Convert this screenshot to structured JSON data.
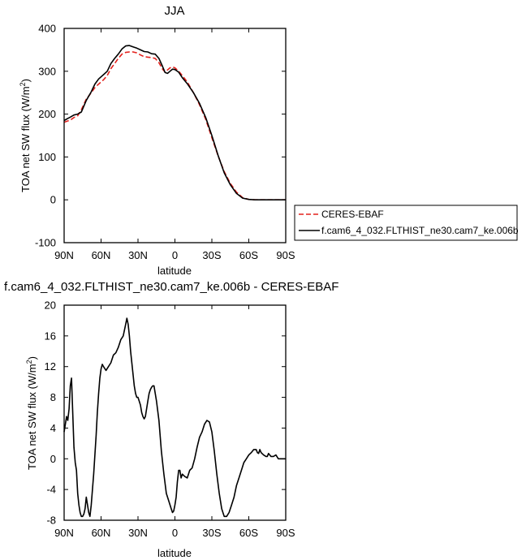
{
  "chart_data": [
    {
      "type": "line",
      "title": "JJA",
      "xlabel": "latitude",
      "ylabel": "TOA net SW flux (W/m",
      "ylabel_sup": "2",
      "ylabel_end": ")",
      "xlim": [
        90,
        -90
      ],
      "ylim": [
        -100,
        400
      ],
      "x_ticks": [
        90,
        60,
        30,
        0,
        -30,
        -60,
        -90
      ],
      "x_tick_labels": [
        "90N",
        "60N",
        "30N",
        "0",
        "30S",
        "60S",
        "90S"
      ],
      "y_ticks": [
        -100,
        0,
        100,
        200,
        300,
        400
      ],
      "y_tick_labels": [
        "-100",
        "0",
        "100",
        "200",
        "300",
        "400"
      ],
      "legend_position": "right",
      "series": [
        {
          "name": "CERES-EBAF",
          "color": "#e4211c",
          "dash": "dashed",
          "x": [
            90,
            87,
            85,
            82,
            79,
            76,
            72,
            68,
            65,
            62,
            58,
            55,
            52,
            49,
            46,
            43,
            40,
            37,
            34,
            31,
            28,
            25,
            22,
            19,
            16,
            13,
            10,
            8,
            6,
            4,
            2,
            0,
            -3,
            -6,
            -10,
            -15,
            -20,
            -25,
            -30,
            -35,
            -40,
            -45,
            -50,
            -55,
            -60,
            -65,
            -70,
            -75,
            -80,
            -85,
            -90
          ],
          "y": [
            181,
            184,
            186,
            192,
            196,
            210,
            235,
            250,
            262,
            270,
            280,
            290,
            306,
            318,
            330,
            340,
            344,
            345,
            345,
            343,
            338,
            334,
            333,
            332,
            330,
            320,
            305,
            298,
            303,
            308,
            310,
            308,
            300,
            290,
            275,
            250,
            222,
            188,
            145,
            103,
            66,
            38,
            18,
            5,
            1,
            0,
            0,
            0,
            0,
            0,
            0
          ]
        },
        {
          "name": "f.cam6_4_032.FLTHIST_ne30.cam7_ke.006b",
          "color": "#000000",
          "dash": "solid",
          "x": [
            90,
            87,
            85,
            82,
            79,
            76,
            72,
            68,
            65,
            62,
            58,
            55,
            52,
            49,
            46,
            43,
            40,
            37,
            34,
            31,
            28,
            25,
            22,
            19,
            16,
            13,
            10,
            8,
            6,
            4,
            2,
            0,
            -3,
            -6,
            -10,
            -15,
            -20,
            -25,
            -30,
            -35,
            -40,
            -45,
            -50,
            -55,
            -60,
            -65,
            -70,
            -75,
            -80,
            -85,
            -90
          ],
          "y": [
            185,
            190,
            193,
            198,
            200,
            205,
            232,
            252,
            270,
            282,
            292,
            300,
            318,
            330,
            340,
            352,
            359,
            360,
            357,
            354,
            350,
            346,
            345,
            341,
            340,
            330,
            311,
            297,
            295,
            300,
            305,
            304,
            298,
            285,
            271,
            250,
            225,
            192,
            150,
            104,
            63,
            35,
            15,
            4,
            1,
            0,
            0,
            0,
            0,
            0,
            0
          ]
        }
      ]
    },
    {
      "type": "line",
      "title": "f.cam6_4_032.FLTHIST_ne30.cam7_ke.006b - CERES-EBAF",
      "xlabel": "latitude",
      "ylabel": "TOA net SW flux (W/m",
      "ylabel_sup": "2",
      "ylabel_end": ")",
      "xlim": [
        90,
        -90
      ],
      "ylim": [
        -8,
        20
      ],
      "x_ticks": [
        90,
        60,
        30,
        0,
        -30,
        -60,
        -90
      ],
      "x_tick_labels": [
        "90N",
        "60N",
        "30N",
        "0",
        "30S",
        "60S",
        "90S"
      ],
      "y_ticks": [
        -8,
        -4,
        0,
        4,
        8,
        12,
        16,
        20
      ],
      "y_tick_labels": [
        "-8",
        "-4",
        "0",
        "4",
        "8",
        "12",
        "16",
        "20"
      ],
      "series": [
        {
          "color": "#000000",
          "dash": "solid",
          "x": [
            90,
            89,
            88,
            87,
            86,
            85,
            84,
            83,
            82,
            81,
            80,
            79,
            78,
            77,
            76,
            75,
            74,
            73,
            72,
            71,
            70,
            69,
            68,
            67,
            66,
            65,
            64,
            63,
            62,
            61,
            60,
            59,
            58,
            56,
            54,
            52,
            50,
            48,
            46,
            44,
            42,
            40,
            39,
            38,
            37,
            36,
            35,
            34,
            33,
            32,
            31,
            30,
            29,
            28,
            27,
            26,
            25,
            24,
            23,
            22,
            21,
            20,
            19,
            18,
            17,
            15,
            13,
            11,
            9,
            7,
            5,
            3,
            2,
            1,
            0,
            -1,
            -2,
            -3,
            -4,
            -5,
            -6,
            -8,
            -10,
            -12,
            -14,
            -16,
            -18,
            -20,
            -22,
            -24,
            -26,
            -28,
            -30,
            -32,
            -34,
            -36,
            -38,
            -40,
            -42,
            -44,
            -46,
            -48,
            -50,
            -52,
            -54,
            -56,
            -58,
            -60,
            -62,
            -64,
            -65,
            -66,
            -67,
            -68,
            -69,
            -70,
            -72,
            -74,
            -75,
            -76,
            -78,
            -80,
            -82,
            -84,
            -86,
            -88,
            -90
          ],
          "y": [
            3.5,
            4.5,
            5.5,
            5.0,
            6.5,
            9.5,
            10.5,
            6.0,
            1.5,
            -0.5,
            -1.5,
            -4.5,
            -6.0,
            -7.0,
            -7.5,
            -7.5,
            -7.2,
            -6.5,
            -5.0,
            -6.0,
            -7.0,
            -7.5,
            -6.0,
            -4.0,
            -2.0,
            0.5,
            3.0,
            6.0,
            8.5,
            10.5,
            11.7,
            12.3,
            12.0,
            11.5,
            12.0,
            12.5,
            13.5,
            13.8,
            14.5,
            15.5,
            16.0,
            17.5,
            18.3,
            17.5,
            16.0,
            14.0,
            12.5,
            11.0,
            9.5,
            8.5,
            8.0,
            8.0,
            7.5,
            7.0,
            6.0,
            5.5,
            5.2,
            5.5,
            6.5,
            7.5,
            8.5,
            9.0,
            9.3,
            9.5,
            9.5,
            7.5,
            5.0,
            1.0,
            -2.0,
            -4.5,
            -5.5,
            -6.5,
            -7.0,
            -6.8,
            -6.0,
            -5.0,
            -3.0,
            -1.5,
            -1.5,
            -2.5,
            -2.0,
            -2.3,
            -2.5,
            -1.5,
            -1.2,
            0.0,
            1.5,
            2.8,
            3.5,
            4.5,
            5.0,
            4.8,
            3.5,
            1.0,
            -2.0,
            -4.5,
            -6.5,
            -7.5,
            -7.5,
            -7.0,
            -6.0,
            -5.0,
            -3.5,
            -2.5,
            -1.5,
            -0.5,
            0.0,
            0.5,
            0.8,
            1.2,
            1.2,
            1.2,
            0.8,
            0.7,
            1.2,
            0.8,
            0.5,
            0.3,
            0.3,
            0.7,
            0.3,
            0.3,
            0.5,
            0.0,
            0.0,
            0.0,
            0.0
          ]
        }
      ]
    }
  ]
}
